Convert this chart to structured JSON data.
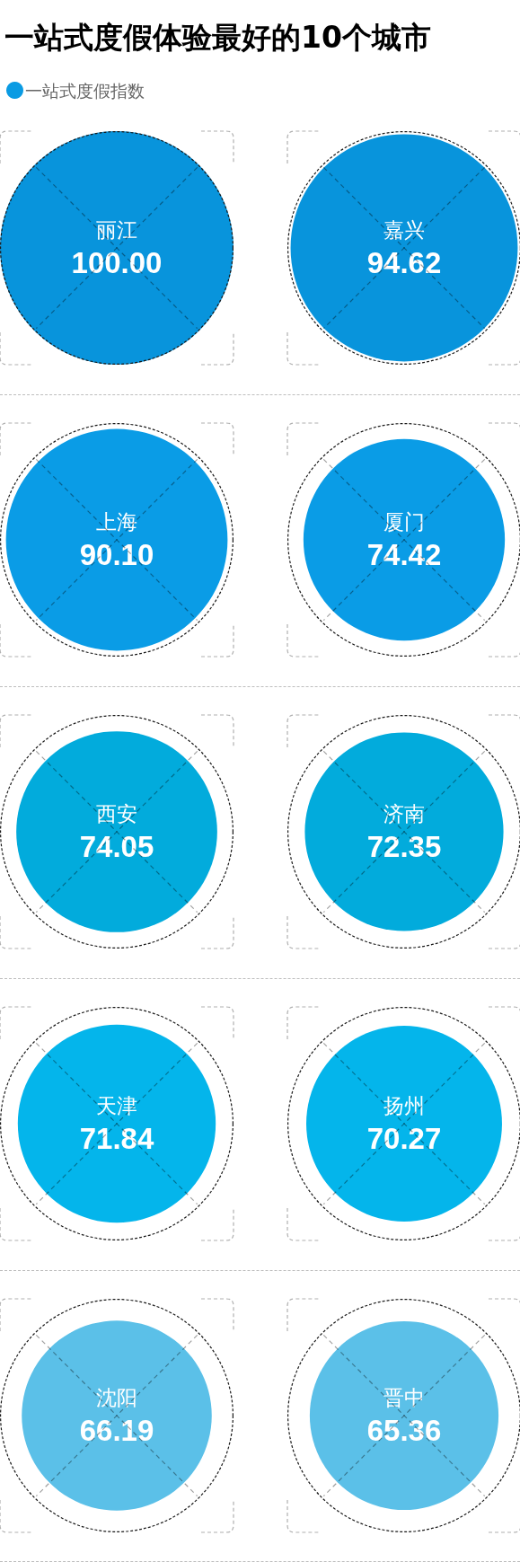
{
  "chart_data": {
    "type": "other",
    "title": "一站式度假体验最好的10个城市",
    "categories": [
      "丽江",
      "嘉兴",
      "上海",
      "厦门",
      "西安",
      "济南",
      "天津",
      "扬州",
      "沈阳",
      "晋中"
    ],
    "series": [
      {
        "name": "一站式度假指数",
        "color": "#0a9be3",
        "colors": [
          "#0894dc",
          "#0894dc",
          "#0a9ce6",
          "#0a9ce6",
          "#02abdc",
          "#02abdc",
          "#04b5eb",
          "#04b5eb",
          "#5bc0e8",
          "#5bc0e8"
        ],
        "values": [
          100.0,
          94.62,
          90.1,
          74.42,
          74.05,
          72.35,
          71.84,
          70.27,
          66.19,
          65.36
        ],
        "value_labels": [
          "100.00",
          "94.62",
          "90.10",
          "74.42",
          "74.05",
          "72.35",
          "71.84",
          "70.27",
          "66.19",
          "65.36"
        ]
      }
    ],
    "legend": "top left"
  }
}
